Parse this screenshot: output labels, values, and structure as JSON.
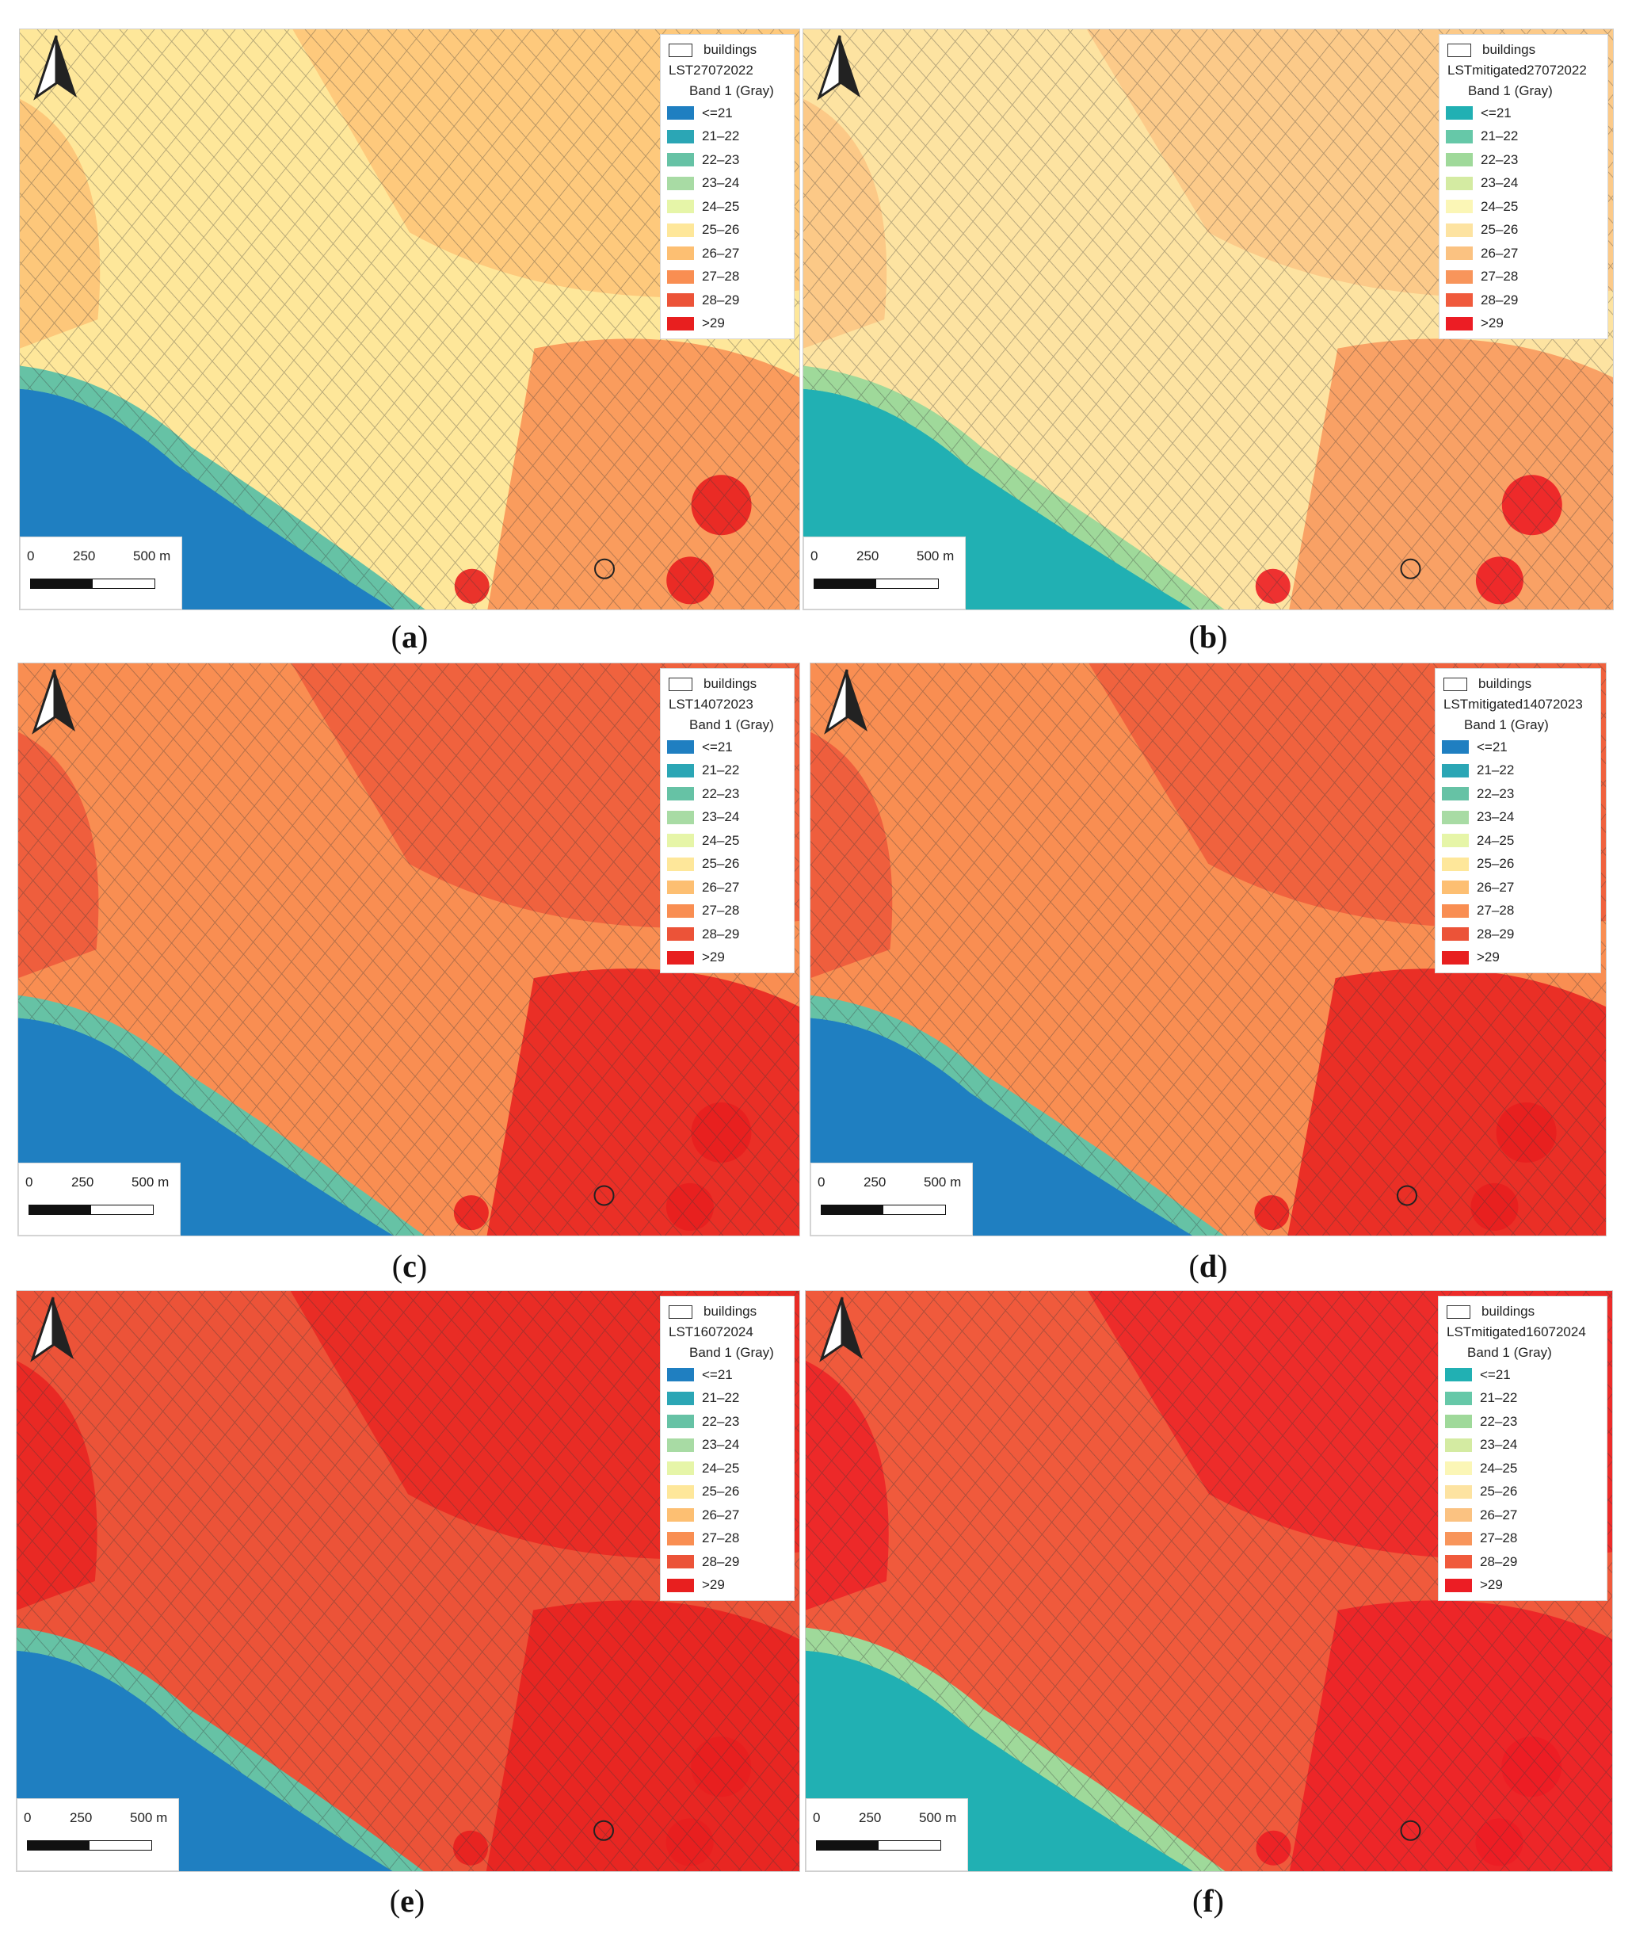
{
  "figure": {
    "panels": [
      {
        "id": "a",
        "caption": "a",
        "layer_name": "LST27072022",
        "legend": {
          "buildings_label": "buildings",
          "band_label": "Band 1 (Gray)",
          "classes": [
            "<=21",
            "21–22",
            "22–23",
            "23–24",
            "24–25",
            "25–26",
            "26–27",
            "27–28",
            "28–29",
            ">29"
          ],
          "colors": [
            "#1f7fc1",
            "#2ba6b5",
            "#66c2a5",
            "#a8dba4",
            "#e6f5a8",
            "#fee79a",
            "#fdbf72",
            "#f98e52",
            "#ec5338",
            "#e81f1f"
          ]
        },
        "scale_labels": [
          "0",
          "250",
          "500 m"
        ],
        "dominant_class": "25–26"
      },
      {
        "id": "b",
        "caption": "b",
        "layer_name": "LSTmitigated27072022",
        "legend": {
          "buildings_label": "buildings",
          "band_label": "Band 1 (Gray)",
          "classes": [
            "<=21",
            "21–22",
            "22–23",
            "23–24",
            "24–25",
            "25–26",
            "26–27",
            "27–28",
            "28–29",
            ">29"
          ],
          "colors": [
            "#21b0b3",
            "#66c8a8",
            "#9fd99a",
            "#d4eba2",
            "#fbf6b6",
            "#fde3a1",
            "#fbc281",
            "#f8955b",
            "#f05a3c",
            "#ec1d24"
          ]
        },
        "scale_labels": [
          "0",
          "250",
          "500 m"
        ],
        "dominant_class": "25–26"
      },
      {
        "id": "c",
        "caption": "c",
        "layer_name": "LST14072023",
        "legend": {
          "buildings_label": "buildings",
          "band_label": "Band 1 (Gray)",
          "classes": [
            "<=21",
            "21–22",
            "22–23",
            "23–24",
            "24–25",
            "25–26",
            "26–27",
            "27–28",
            "28–29",
            ">29"
          ],
          "colors": [
            "#1f7fc1",
            "#2ba6b5",
            "#66c2a5",
            "#a8dba4",
            "#e6f5a8",
            "#fee79a",
            "#fdbf72",
            "#f98e52",
            "#ec5338",
            "#e81f1f"
          ]
        },
        "scale_labels": [
          "0",
          "250",
          "500 m"
        ],
        "dominant_class": "27–28"
      },
      {
        "id": "d",
        "caption": "d",
        "layer_name": "LSTmitigated14072023",
        "legend": {
          "buildings_label": "buildings",
          "band_label": "Band 1 (Gray)",
          "classes": [
            "<=21",
            "21–22",
            "22–23",
            "23–24",
            "24–25",
            "25–26",
            "26–27",
            "27–28",
            "28–29",
            ">29"
          ],
          "colors": [
            "#1f7fc1",
            "#2ba6b5",
            "#66c2a5",
            "#a8dba4",
            "#e6f5a8",
            "#fee79a",
            "#fdbf72",
            "#f98e52",
            "#ec5338",
            "#e81f1f"
          ]
        },
        "scale_labels": [
          "0",
          "250",
          "500 m"
        ],
        "dominant_class": "27–28"
      },
      {
        "id": "e",
        "caption": "e",
        "layer_name": "LST16072024",
        "legend": {
          "buildings_label": "buildings",
          "band_label": "Band 1 (Gray)",
          "classes": [
            "<=21",
            "21–22",
            "22–23",
            "23–24",
            "24–25",
            "25–26",
            "26–27",
            "27–28",
            "28–29",
            ">29"
          ],
          "colors": [
            "#1f7fc1",
            "#2ba6b5",
            "#66c2a5",
            "#a8dba4",
            "#e6f5a8",
            "#fee79a",
            "#fdbf72",
            "#f98e52",
            "#ec5338",
            "#e81f1f"
          ]
        },
        "scale_labels": [
          "0",
          "250",
          "500 m"
        ],
        "dominant_class": "28–29"
      },
      {
        "id": "f",
        "caption": "f",
        "layer_name": "LSTmitigated16072024",
        "legend": {
          "buildings_label": "buildings",
          "band_label": "Band 1 (Gray)",
          "classes": [
            "<=21",
            "21–22",
            "22–23",
            "23–24",
            "24–25",
            "25–26",
            "26–27",
            "27–28",
            "28–29",
            ">29"
          ],
          "colors": [
            "#21b0b3",
            "#66c8a8",
            "#9fd99a",
            "#d4eba2",
            "#fbf6b6",
            "#fde3a1",
            "#fbc281",
            "#f8955b",
            "#f05a3c",
            "#ec1d24"
          ]
        },
        "scale_labels": [
          "0",
          "250",
          "500 m"
        ],
        "dominant_class": "28–29"
      }
    ]
  }
}
